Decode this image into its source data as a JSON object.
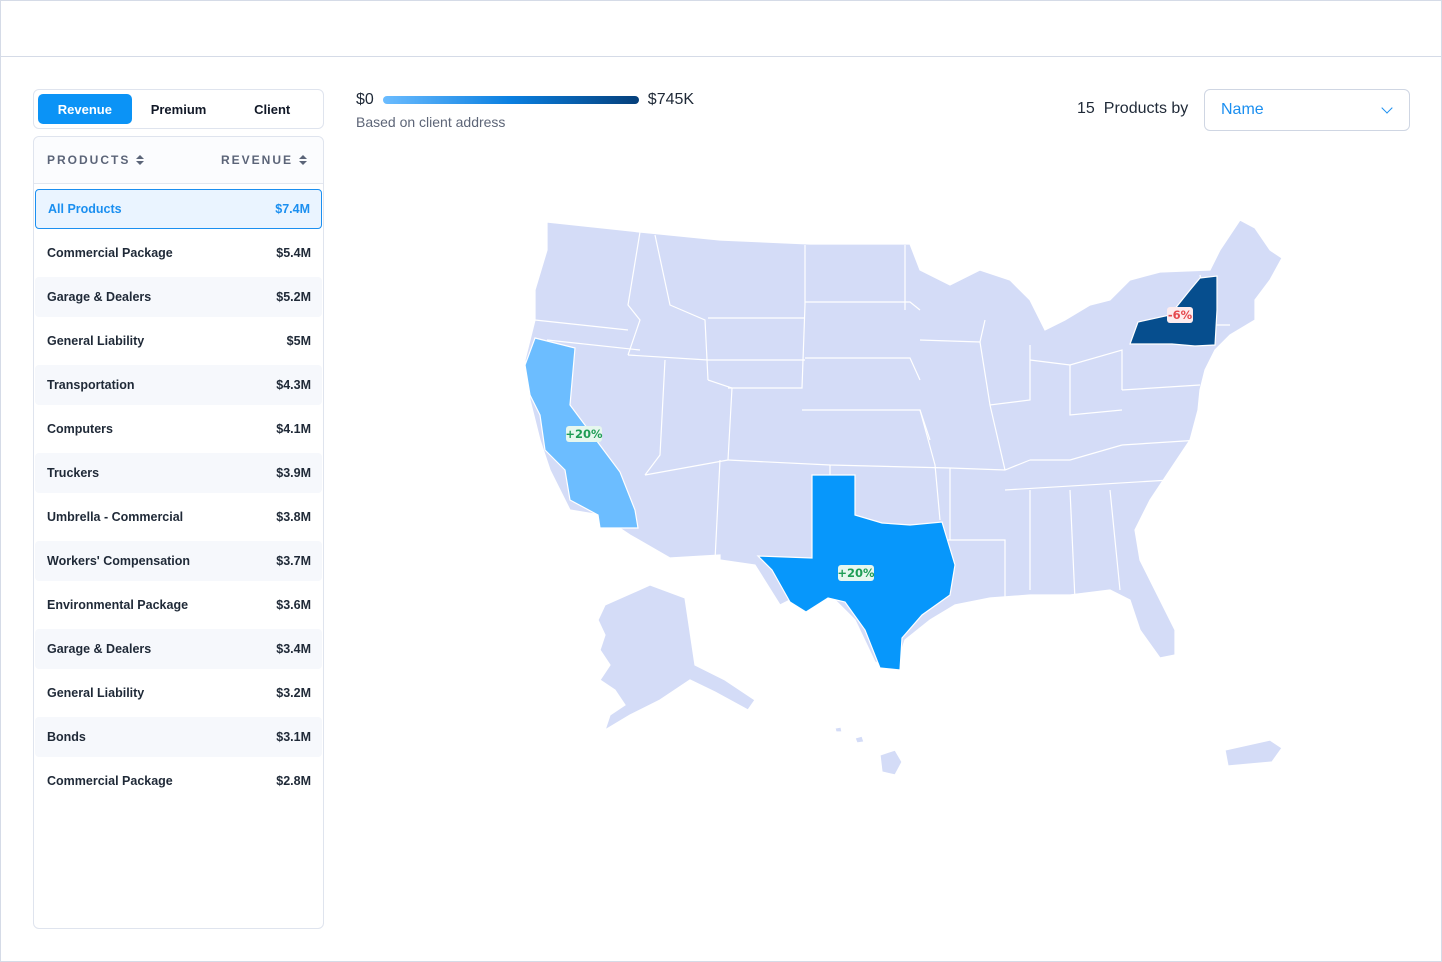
{
  "tabs": [
    {
      "label": "Revenue",
      "active": true
    },
    {
      "label": "Premium",
      "active": false
    },
    {
      "label": "Client",
      "active": false
    }
  ],
  "table": {
    "col_products": "PRODUCTS",
    "col_revenue": "REVENUE",
    "rows": [
      {
        "name": "All Products",
        "value": "$7.4M"
      },
      {
        "name": "Commercial Package",
        "value": "$5.4M"
      },
      {
        "name": "Garage & Dealers",
        "value": "$5.2M"
      },
      {
        "name": "General Liability",
        "value": "$5M"
      },
      {
        "name": "Transportation",
        "value": "$4.3M"
      },
      {
        "name": "Computers",
        "value": "$4.1M"
      },
      {
        "name": "Truckers",
        "value": "$3.9M"
      },
      {
        "name": "Umbrella - Commercial",
        "value": "$3.8M"
      },
      {
        "name": "Workers' Compensation",
        "value": "$3.7M"
      },
      {
        "name": "Environmental Package",
        "value": "$3.6M"
      },
      {
        "name": "Garage & Dealers",
        "value": "$3.4M"
      },
      {
        "name": "General Liability",
        "value": "$3.2M"
      },
      {
        "name": "Bonds",
        "value": "$3.1M"
      },
      {
        "name": "Commercial Package",
        "value": "$2.8M"
      }
    ]
  },
  "legend": {
    "min": "$0",
    "max": "$745K",
    "note": "Based on client address"
  },
  "products_by": {
    "count": "15",
    "label": "Products by",
    "selected": "Name"
  },
  "map": {
    "base_color": "#d4dcf7",
    "highlights": [
      {
        "state": "California",
        "color": "#6cbdff",
        "change": "+20%",
        "change_color": "#1f9d55"
      },
      {
        "state": "Texas",
        "color": "#0797fb",
        "change": "+20%",
        "change_color": "#1f9d55"
      },
      {
        "state": "New York",
        "color": "#064e8e",
        "change": "-6%",
        "change_color": "#e5484d"
      }
    ]
  }
}
